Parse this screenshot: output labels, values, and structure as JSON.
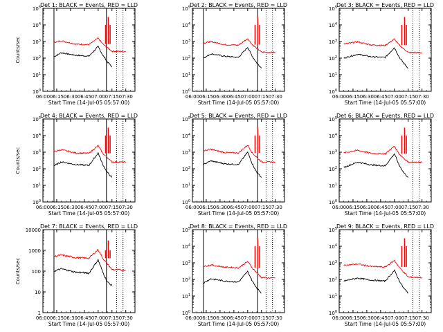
{
  "chart_data": [
    {
      "type": "line",
      "title": "Det 1: BLACK = Events, RED = LLD",
      "xlabel": "Start Time (14-Jul-05 05:57:00)",
      "ylabel": "Counts/sec",
      "x_ticks": [
        "06:00",
        "06:15",
        "06:30",
        "06:45",
        "07:00",
        "07:15",
        "07:30"
      ],
      "y_scale": "log",
      "ylim": [
        1,
        100000
      ],
      "y_ticks": [
        "10^0",
        "10^1",
        "10^2",
        "10^3",
        "10^4",
        "10^5"
      ],
      "markers": {
        "solid": [
          "06:12",
          "07:09"
        ],
        "dotted": [
          "07:20",
          "07:27"
        ]
      },
      "series": [
        {
          "name": "Events",
          "color": "#000000",
          "points": [
            [
              "06:12",
              120
            ],
            [
              "06:20",
              210
            ],
            [
              "06:35",
              150
            ],
            [
              "06:50",
              130
            ],
            [
              "07:00",
              500
            ],
            [
              "07:05",
              150
            ],
            [
              "07:10",
              60
            ],
            [
              "07:15",
              30
            ]
          ]
        },
        {
          "name": "LLD",
          "color": "#ff0000",
          "points": [
            [
              "06:12",
              900
            ],
            [
              "06:20",
              1100
            ],
            [
              "06:35",
              700
            ],
            [
              "06:50",
              650
            ],
            [
              "07:00",
              1600
            ],
            [
              "07:05",
              700
            ],
            [
              "07:15",
              260
            ],
            [
              "07:30",
              250
            ]
          ]
        }
      ]
    },
    {
      "type": "line",
      "title": "Det 2: BLACK = Events, RED = LLD",
      "xlabel": "Start Time (14-Jul-05 05:57:00)",
      "ylabel": "",
      "x_ticks": [
        "06:00",
        "06:15",
        "06:30",
        "06:45",
        "07:00",
        "07:15",
        "07:30"
      ],
      "y_scale": "log",
      "ylim": [
        1,
        100000
      ],
      "y_ticks": [
        "10^0",
        "10^1",
        "10^2",
        "10^3",
        "10^4",
        "10^5"
      ],
      "markers": {
        "solid": [
          "06:12",
          "07:11"
        ],
        "dotted": [
          "07:20",
          "07:27"
        ]
      },
      "series": [
        {
          "name": "Events",
          "color": "#000000",
          "points": [
            [
              "06:12",
              100
            ],
            [
              "06:20",
              180
            ],
            [
              "06:35",
              130
            ],
            [
              "06:50",
              110
            ],
            [
              "07:00",
              450
            ],
            [
              "07:05",
              130
            ],
            [
              "07:10",
              50
            ],
            [
              "07:15",
              25
            ]
          ]
        },
        {
          "name": "LLD",
          "color": "#ff0000",
          "points": [
            [
              "06:12",
              800
            ],
            [
              "06:20",
              1000
            ],
            [
              "06:35",
              650
            ],
            [
              "06:50",
              600
            ],
            [
              "07:00",
              1500
            ],
            [
              "07:05",
              650
            ],
            [
              "07:15",
              230
            ],
            [
              "07:30",
              220
            ]
          ]
        }
      ]
    },
    {
      "type": "line",
      "title": "Det 3: BLACK = Events, RED = LLD",
      "xlabel": "Start Time (14-Jul-05 05:57:00)",
      "ylabel": "",
      "x_ticks": [
        "06:00",
        "06:15",
        "06:30",
        "06:45",
        "07:00",
        "07:15",
        "07:30"
      ],
      "y_scale": "log",
      "ylim": [
        1,
        100000
      ],
      "y_ticks": [
        "10^0",
        "10^1",
        "10^2",
        "10^3",
        "10^4",
        "10^5"
      ],
      "markers": {
        "solid": [],
        "dotted": [
          "07:20",
          "07:27"
        ]
      },
      "series": [
        {
          "name": "Events",
          "color": "#000000",
          "points": [
            [
              "06:05",
              100
            ],
            [
              "06:20",
              170
            ],
            [
              "06:35",
              120
            ],
            [
              "06:50",
              110
            ],
            [
              "07:00",
              430
            ],
            [
              "07:05",
              120
            ],
            [
              "07:10",
              50
            ],
            [
              "07:15",
              25
            ]
          ]
        },
        {
          "name": "LLD",
          "color": "#ff0000",
          "points": [
            [
              "06:05",
              700
            ],
            [
              "06:20",
              950
            ],
            [
              "06:35",
              620
            ],
            [
              "06:50",
              580
            ],
            [
              "07:00",
              1400
            ],
            [
              "07:05",
              620
            ],
            [
              "07:15",
              220
            ],
            [
              "07:30",
              210
            ]
          ]
        }
      ]
    },
    {
      "type": "line",
      "title": "Det 4: BLACK = Events, RED = LLD",
      "xlabel": "Start Time (14-Jul-05 05:57:00)",
      "ylabel": "Counts/sec",
      "x_ticks": [
        "06:00",
        "06:15",
        "06:30",
        "06:45",
        "07:00",
        "07:15",
        "07:30"
      ],
      "y_scale": "log",
      "ylim": [
        1,
        100000
      ],
      "y_ticks": [
        "10^0",
        "10^1",
        "10^2",
        "10^3",
        "10^4",
        "10^5"
      ],
      "markers": {
        "solid": [
          "06:12",
          "07:09"
        ],
        "dotted": [
          "07:20",
          "07:27"
        ]
      },
      "series": [
        {
          "name": "Events",
          "color": "#000000",
          "points": [
            [
              "06:12",
              150
            ],
            [
              "06:20",
              260
            ],
            [
              "06:35",
              180
            ],
            [
              "06:50",
              160
            ],
            [
              "07:00",
              900
            ],
            [
              "07:05",
              180
            ],
            [
              "07:10",
              60
            ],
            [
              "07:15",
              30
            ]
          ]
        },
        {
          "name": "LLD",
          "color": "#ff0000",
          "points": [
            [
              "06:12",
              1100
            ],
            [
              "06:20",
              1400
            ],
            [
              "06:35",
              900
            ],
            [
              "06:50",
              850
            ],
            [
              "07:00",
              2500
            ],
            [
              "07:05",
              850
            ],
            [
              "07:15",
              260
            ],
            [
              "07:30",
              250
            ]
          ]
        }
      ]
    },
    {
      "type": "line",
      "title": "Det 5: BLACK = Events, RED = LLD",
      "xlabel": "Start Time (14-Jul-05 05:57:00)",
      "ylabel": "",
      "x_ticks": [
        "06:00",
        "06:15",
        "06:30",
        "06:45",
        "07:00",
        "07:15",
        "07:30"
      ],
      "y_scale": "log",
      "ylim": [
        1,
        100000
      ],
      "y_ticks": [
        "10^0",
        "10^1",
        "10^2",
        "10^3",
        "10^4",
        "10^5"
      ],
      "markers": {
        "solid": [
          "06:12",
          "07:11"
        ],
        "dotted": [
          "07:20",
          "07:27"
        ]
      },
      "series": [
        {
          "name": "Events",
          "color": "#000000",
          "points": [
            [
              "06:12",
              180
            ],
            [
              "06:20",
              300
            ],
            [
              "06:35",
              200
            ],
            [
              "06:50",
              180
            ],
            [
              "07:00",
              1000
            ],
            [
              "07:05",
              200
            ],
            [
              "07:10",
              60
            ],
            [
              "07:15",
              30
            ]
          ]
        },
        {
          "name": "LLD",
          "color": "#ff0000",
          "points": [
            [
              "06:12",
              1200
            ],
            [
              "06:20",
              1500
            ],
            [
              "06:35",
              950
            ],
            [
              "06:50",
              900
            ],
            [
              "07:00",
              2700
            ],
            [
              "07:05",
              900
            ],
            [
              "07:15",
              260
            ],
            [
              "07:30",
              250
            ]
          ]
        }
      ]
    },
    {
      "type": "line",
      "title": "Det 6: BLACK = Events, RED = LLD",
      "xlabel": "Start Time (14-Jul-05 05:57:00)",
      "ylabel": "",
      "x_ticks": [
        "06:00",
        "06:15",
        "06:30",
        "06:45",
        "07:00",
        "07:15",
        "07:30"
      ],
      "y_scale": "log",
      "ylim": [
        1,
        100000
      ],
      "y_ticks": [
        "10^0",
        "10^1",
        "10^2",
        "10^3",
        "10^4",
        "10^5"
      ],
      "markers": {
        "solid": [],
        "dotted": [
          "07:20",
          "07:27"
        ]
      },
      "series": [
        {
          "name": "Events",
          "color": "#000000",
          "points": [
            [
              "06:05",
              120
            ],
            [
              "06:20",
              250
            ],
            [
              "06:35",
              170
            ],
            [
              "06:50",
              150
            ],
            [
              "07:00",
              800
            ],
            [
              "07:05",
              170
            ],
            [
              "07:10",
              60
            ],
            [
              "07:15",
              30
            ]
          ]
        },
        {
          "name": "LLD",
          "color": "#ff0000",
          "points": [
            [
              "06:05",
              900
            ],
            [
              "06:20",
              1300
            ],
            [
              "06:35",
              850
            ],
            [
              "06:50",
              800
            ],
            [
              "07:00",
              2300
            ],
            [
              "07:05",
              800
            ],
            [
              "07:15",
              250
            ],
            [
              "07:30",
              240
            ]
          ]
        }
      ]
    },
    {
      "type": "line",
      "title": "Det 7: BLACK = Events, RED = LLD",
      "xlabel": "Start Time (14-Jul-05 05:57:00)",
      "ylabel": "Counts/sec",
      "x_ticks": [
        "06:00",
        "06:15",
        "06:30",
        "06:45",
        "07:00",
        "07:15",
        "07:30"
      ],
      "y_scale": "log",
      "ylim": [
        1,
        10000
      ],
      "y_ticks": [
        "1",
        "10",
        "100",
        "1000",
        "10000"
      ],
      "markers": {
        "solid": [
          "06:12",
          "07:09"
        ],
        "dotted": [
          "07:20",
          "07:27"
        ]
      },
      "series": [
        {
          "name": "Events",
          "color": "#000000",
          "points": [
            [
              "06:12",
              100
            ],
            [
              "06:20",
              130
            ],
            [
              "06:35",
              90
            ],
            [
              "06:50",
              80
            ],
            [
              "07:00",
              350
            ],
            [
              "07:05",
              90
            ],
            [
              "07:10",
              30
            ],
            [
              "07:15",
              20
            ]
          ]
        },
        {
          "name": "LLD",
          "color": "#ff0000",
          "points": [
            [
              "06:12",
              500
            ],
            [
              "06:20",
              600
            ],
            [
              "06:35",
              450
            ],
            [
              "06:50",
              420
            ],
            [
              "07:00",
              1100
            ],
            [
              "07:05",
              420
            ],
            [
              "07:15",
              120
            ],
            [
              "07:30",
              110
            ]
          ]
        }
      ]
    },
    {
      "type": "line",
      "title": "Det 8: BLACK = Events, RED = LLD",
      "xlabel": "Start Time (14-Jul-05 05:57:00)",
      "ylabel": "",
      "x_ticks": [
        "06:00",
        "06:15",
        "06:30",
        "06:45",
        "07:00",
        "07:15",
        "07:30"
      ],
      "y_scale": "log",
      "ylim": [
        1,
        100000
      ],
      "y_ticks": [
        "10^0",
        "10^1",
        "10^2",
        "10^3",
        "10^4",
        "10^5"
      ],
      "markers": {
        "solid": [
          "06:12",
          "07:11"
        ],
        "dotted": [
          "07:20",
          "07:27"
        ]
      },
      "series": [
        {
          "name": "Events",
          "color": "#000000",
          "points": [
            [
              "06:12",
              60
            ],
            [
              "06:20",
              110
            ],
            [
              "06:35",
              80
            ],
            [
              "06:50",
              70
            ],
            [
              "07:00",
              300
            ],
            [
              "07:05",
              80
            ],
            [
              "07:10",
              30
            ],
            [
              "07:15",
              15
            ]
          ]
        },
        {
          "name": "LLD",
          "color": "#ff0000",
          "points": [
            [
              "06:12",
              600
            ],
            [
              "06:20",
              750
            ],
            [
              "06:35",
              550
            ],
            [
              "06:50",
              500
            ],
            [
              "07:00",
              1200
            ],
            [
              "07:05",
              500
            ],
            [
              "07:15",
              130
            ],
            [
              "07:30",
              120
            ]
          ]
        }
      ]
    },
    {
      "type": "line",
      "title": "Det 9: BLACK = Events, RED = LLD",
      "xlabel": "Start Time (14-Jul-05 05:57:00)",
      "ylabel": "",
      "x_ticks": [
        "06:00",
        "06:15",
        "06:30",
        "06:45",
        "07:00",
        "07:15",
        "07:30"
      ],
      "y_scale": "log",
      "ylim": [
        1,
        100000
      ],
      "y_ticks": [
        "10^0",
        "10^1",
        "10^2",
        "10^3",
        "10^4",
        "10^5"
      ],
      "markers": {
        "solid": [],
        "dotted": [
          "07:20",
          "07:27"
        ]
      },
      "series": [
        {
          "name": "Events",
          "color": "#000000",
          "points": [
            [
              "06:05",
              80
            ],
            [
              "06:20",
              120
            ],
            [
              "06:35",
              90
            ],
            [
              "06:50",
              80
            ],
            [
              "07:00",
              350
            ],
            [
              "07:05",
              90
            ],
            [
              "07:10",
              30
            ],
            [
              "07:15",
              15
            ]
          ]
        },
        {
          "name": "LLD",
          "color": "#ff0000",
          "points": [
            [
              "06:05",
              700
            ],
            [
              "06:20",
              850
            ],
            [
              "06:35",
              600
            ],
            [
              "06:50",
              560
            ],
            [
              "07:00",
              1400
            ],
            [
              "07:05",
              560
            ],
            [
              "07:15",
              140
            ],
            [
              "07:30",
              130
            ]
          ]
        }
      ]
    }
  ]
}
